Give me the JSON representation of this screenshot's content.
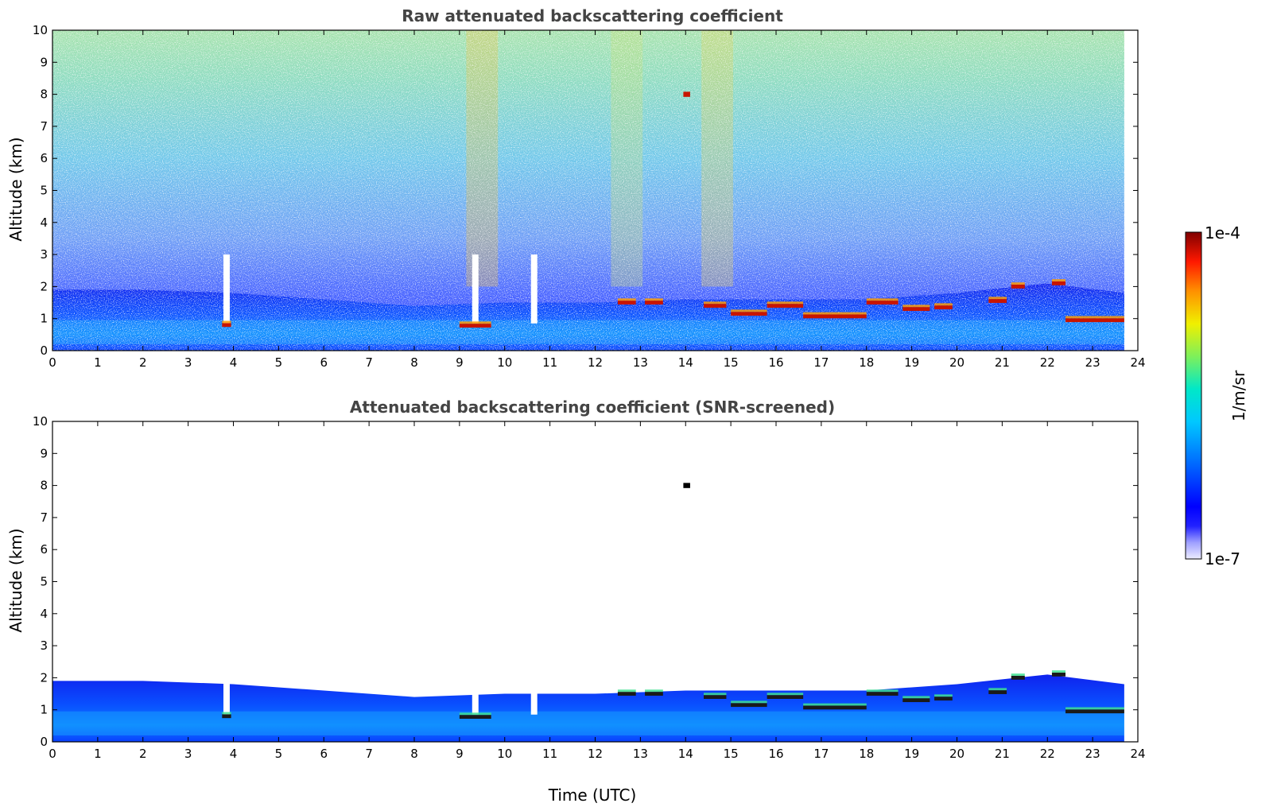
{
  "chart_data": [
    {
      "type": "heatmap",
      "title": "Raw attenuated backscattering coefficient",
      "xlabel": "",
      "ylabel": "Altitude (km)",
      "xlim": [
        0,
        24
      ],
      "ylim": [
        0,
        10
      ],
      "xticks": [
        "0",
        "1",
        "2",
        "3",
        "4",
        "5",
        "6",
        "7",
        "8",
        "9",
        "10",
        "11",
        "12",
        "13",
        "14",
        "15",
        "16",
        "17",
        "18",
        "19",
        "20",
        "21",
        "22",
        "23",
        "24"
      ],
      "yticks": [
        "0",
        "1",
        "2",
        "3",
        "4",
        "5",
        "6",
        "7",
        "8",
        "9",
        "10"
      ],
      "data_end_time": 23.7,
      "background_noise": "high above ~2 km, increasing with altitude",
      "aerosol_layer_top_km": [
        {
          "t": 0,
          "z": 1.9
        },
        {
          "t": 2,
          "z": 1.9
        },
        {
          "t": 4,
          "z": 1.8
        },
        {
          "t": 6,
          "z": 1.6
        },
        {
          "t": 8,
          "z": 1.4
        },
        {
          "t": 10,
          "z": 1.5
        },
        {
          "t": 12,
          "z": 1.5
        },
        {
          "t": 14,
          "z": 1.6
        },
        {
          "t": 16,
          "z": 1.6
        },
        {
          "t": 18,
          "z": 1.6
        },
        {
          "t": 20,
          "z": 1.8
        },
        {
          "t": 22,
          "z": 2.1
        },
        {
          "t": 23.7,
          "z": 1.8
        }
      ],
      "cloud_segments_km": [
        {
          "t0": 3.75,
          "t1": 3.95,
          "z": 0.8
        },
        {
          "t0": 9.0,
          "t1": 9.7,
          "z": 0.78
        },
        {
          "t0": 12.5,
          "t1": 12.9,
          "z": 1.5
        },
        {
          "t0": 13.1,
          "t1": 13.5,
          "z": 1.5
        },
        {
          "t0": 14.4,
          "t1": 14.9,
          "z": 1.4
        },
        {
          "t0": 15.0,
          "t1": 15.8,
          "z": 1.15
        },
        {
          "t0": 15.8,
          "t1": 16.6,
          "z": 1.4
        },
        {
          "t0": 16.6,
          "t1": 18.0,
          "z": 1.07
        },
        {
          "t0": 18.0,
          "t1": 18.7,
          "z": 1.5
        },
        {
          "t0": 18.8,
          "t1": 19.4,
          "z": 1.3
        },
        {
          "t0": 19.5,
          "t1": 19.9,
          "z": 1.35
        },
        {
          "t0": 20.7,
          "t1": 21.1,
          "z": 1.55
        },
        {
          "t0": 21.2,
          "t1": 21.5,
          "z": 2.0
        },
        {
          "t0": 22.1,
          "t1": 22.4,
          "z": 2.1
        },
        {
          "t0": 22.4,
          "t1": 23.7,
          "z": 0.95
        }
      ],
      "rain_gaps_h": [
        3.85,
        9.35,
        10.65
      ]
    },
    {
      "type": "heatmap",
      "title": "Attenuated backscattering coefficient (SNR-screened)",
      "xlabel": "Time (UTC)",
      "ylabel": "Altitude (km)",
      "xlim": [
        0,
        24
      ],
      "ylim": [
        0,
        10
      ],
      "xticks": [
        "0",
        "1",
        "2",
        "3",
        "4",
        "5",
        "6",
        "7",
        "8",
        "9",
        "10",
        "11",
        "12",
        "13",
        "14",
        "15",
        "16",
        "17",
        "18",
        "19",
        "20",
        "21",
        "22",
        "23",
        "24"
      ],
      "yticks": [
        "0",
        "1",
        "2",
        "3",
        "4",
        "5",
        "6",
        "7",
        "8",
        "9",
        "10"
      ],
      "data_end_time": 23.7,
      "background_noise": "removed (white)",
      "isolated_cloud_km": {
        "t": 14.0,
        "z": 8.0
      }
    }
  ],
  "colorbar": {
    "label": "1/m/sr",
    "max_label": "1e-4",
    "min_label": "1e-7",
    "scale": "log",
    "colors": [
      "#e8e8ff",
      "#bfc0ff",
      "#8a8cff",
      "#3c3cff",
      "#0000ff",
      "#0048ff",
      "#0090ff",
      "#00c8ff",
      "#00e8d0",
      "#40f090",
      "#90f040",
      "#d8f000",
      "#ffe000",
      "#ffa800",
      "#ff6800",
      "#ff2000",
      "#d00000",
      "#800000"
    ]
  }
}
